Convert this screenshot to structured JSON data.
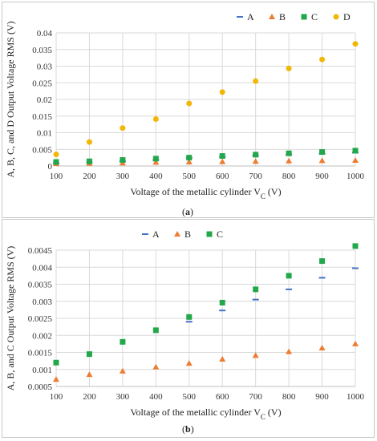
{
  "chart_data": [
    {
      "type": "scatter",
      "caption": "a",
      "xlabel": "Voltage of the metallic cylinder V",
      "xlabel_sub": "C",
      "xlabel_unit": " (V)",
      "ylabel": "A, B, C, and D Output Voltage RMS (V)",
      "x": [
        100,
        200,
        300,
        400,
        500,
        600,
        700,
        800,
        900,
        1000
      ],
      "xlim": [
        100,
        1000
      ],
      "ylim": [
        0,
        0.04
      ],
      "yticks": [
        0,
        0.005,
        0.01,
        0.015,
        0.02,
        0.025,
        0.03,
        0.035,
        0.04
      ],
      "yticklabels": [
        "0",
        "0.005",
        "0.01",
        "0.015",
        "0.02",
        "0.025",
        "0.03",
        "0.035",
        "0.04"
      ],
      "grid": true,
      "legend_position": "top",
      "series": [
        {
          "name": "A",
          "marker": "dash",
          "color": "#4472c4",
          "values": [
            0.0008,
            0.0011,
            0.0014,
            0.0018,
            0.0024,
            0.0027,
            0.0031,
            0.0034,
            0.0037,
            0.004
          ]
        },
        {
          "name": "B",
          "marker": "triangle",
          "color": "#ed7d31",
          "values": [
            0.0007,
            0.0008,
            0.0009,
            0.0011,
            0.0012,
            0.0013,
            0.0014,
            0.0015,
            0.0016,
            0.0017
          ]
        },
        {
          "name": "C",
          "marker": "square",
          "color": "#22a84a",
          "values": [
            0.0012,
            0.0014,
            0.0018,
            0.0022,
            0.0025,
            0.003,
            0.0034,
            0.0038,
            0.0042,
            0.0046
          ]
        },
        {
          "name": "D",
          "marker": "circle",
          "color": "#f2b705",
          "values": [
            0.0035,
            0.0072,
            0.0114,
            0.0141,
            0.0188,
            0.0222,
            0.0255,
            0.0293,
            0.032,
            0.0367
          ]
        }
      ]
    },
    {
      "type": "scatter",
      "caption": "b",
      "xlabel": "Voltage of the metallic cylinder V",
      "xlabel_sub": "C",
      "xlabel_unit": " (V)",
      "ylabel": "A, B, and C Output Voltage RMS (V)",
      "x": [
        100,
        200,
        300,
        400,
        500,
        600,
        700,
        800,
        900,
        1000
      ],
      "xlim": [
        100,
        1000
      ],
      "ylim": [
        0.0005,
        0.0045
      ],
      "yticks": [
        0.0005,
        0.001,
        0.0015,
        0.002,
        0.0025,
        0.003,
        0.0035,
        0.004,
        0.0045
      ],
      "yticklabels": [
        "0.0005",
        "0.001",
        "0.0015",
        "0.002",
        "0.0025",
        "0.003",
        "0.0035",
        "0.004",
        "0.0045"
      ],
      "grid": true,
      "legend_position": "top",
      "series": [
        {
          "name": "A",
          "marker": "dash",
          "color": "#4472c4",
          "values": [
            null,
            null,
            null,
            null,
            0.0024,
            0.00273,
            0.00305,
            0.00335,
            0.00369,
            0.00397
          ]
        },
        {
          "name": "B",
          "marker": "triangle",
          "color": "#ed7d31",
          "values": [
            0.00071,
            0.00085,
            0.00095,
            0.00107,
            0.00118,
            0.0013,
            0.00141,
            0.00152,
            0.00163,
            0.00175
          ]
        },
        {
          "name": "C",
          "marker": "square",
          "color": "#22a84a",
          "values": [
            0.0012,
            0.00145,
            0.00181,
            0.00215,
            0.00254,
            0.00296,
            0.00335,
            0.00375,
            0.00418,
            0.00462
          ]
        }
      ]
    }
  ]
}
